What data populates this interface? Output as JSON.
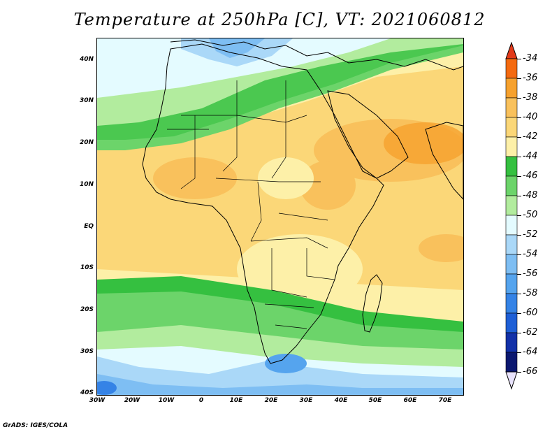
{
  "title": "Temperature at 250hPa [C], VT: 2021060812",
  "footer": "GrADS: IGES/COLA",
  "map": {
    "lon_range": [
      -30,
      75
    ],
    "lat_range": [
      -40,
      45
    ],
    "lat_labels": [
      {
        "value": 40,
        "text": "40N"
      },
      {
        "value": 30,
        "text": "30N"
      },
      {
        "value": 20,
        "text": "20N"
      },
      {
        "value": 10,
        "text": "10N"
      },
      {
        "value": 0,
        "text": "EQ"
      },
      {
        "value": -10,
        "text": "10S"
      },
      {
        "value": -20,
        "text": "20S"
      },
      {
        "value": -30,
        "text": "30S"
      },
      {
        "value": -40,
        "text": "40S"
      }
    ],
    "lon_labels": [
      {
        "value": -30,
        "text": "30W"
      },
      {
        "value": -20,
        "text": "20W"
      },
      {
        "value": -10,
        "text": "10W"
      },
      {
        "value": 0,
        "text": "0"
      },
      {
        "value": 10,
        "text": "10E"
      },
      {
        "value": 20,
        "text": "20E"
      },
      {
        "value": 30,
        "text": "30E"
      },
      {
        "value": 40,
        "text": "40E"
      },
      {
        "value": 50,
        "text": "50E"
      },
      {
        "value": 60,
        "text": "60E"
      },
      {
        "value": 70,
        "text": "70E"
      }
    ]
  },
  "colorbar": {
    "levels": [
      {
        "label": "-34",
        "color": "#e23a1a"
      },
      {
        "label": "-36",
        "color": "#f46a10"
      },
      {
        "label": "-38",
        "color": "#f6a12e"
      },
      {
        "label": "-40",
        "color": "#f9c15c"
      },
      {
        "label": "-42",
        "color": "#fbd778"
      },
      {
        "label": "-44",
        "color": "#fdf0a8"
      },
      {
        "label": "-46",
        "color": "#35c040"
      },
      {
        "label": "-48",
        "color": "#6cd46a"
      },
      {
        "label": "-50",
        "color": "#b2ec9e"
      },
      {
        "label": "-52",
        "color": "#e4fbff"
      },
      {
        "label": "-54",
        "color": "#aad8f8"
      },
      {
        "label": "-56",
        "color": "#7ebef3"
      },
      {
        "label": "-58",
        "color": "#55a4ee"
      },
      {
        "label": "-60",
        "color": "#3583e6"
      },
      {
        "label": "-62",
        "color": "#1e5fd6"
      },
      {
        "label": "-64",
        "color": "#1231a8"
      },
      {
        "label": "-66",
        "color": "#0b1870"
      }
    ],
    "end_low_color": "#e8e2fb"
  }
}
